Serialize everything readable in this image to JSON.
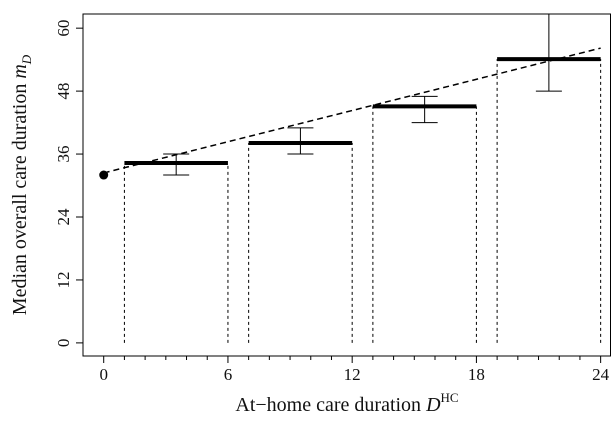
{
  "chart_data": {
    "type": "step-median",
    "xlabel": {
      "text": "At−home care duration",
      "symbol": "D",
      "superscript": "HC"
    },
    "ylabel": {
      "text": "Median overall care duration",
      "symbol": "m",
      "subscript": "D"
    },
    "xlim": [
      -1,
      24.5
    ],
    "ylim": [
      -2.5,
      62.7
    ],
    "xticks": [
      0,
      6,
      12,
      18,
      24
    ],
    "xminor_ticks": [
      1,
      2,
      3,
      4,
      5,
      7,
      8,
      9,
      10,
      11,
      13,
      14,
      15,
      16,
      17,
      19,
      20,
      21,
      22,
      23
    ],
    "yticks": [
      0,
      12,
      24,
      36,
      48,
      60
    ],
    "segments": [
      {
        "start": 1,
        "end": 6,
        "value": 34.3
      },
      {
        "start": 7,
        "end": 12,
        "value": 38.1
      },
      {
        "start": 13,
        "end": 18,
        "value": 45.1
      },
      {
        "start": 19,
        "end": 24,
        "value": 54.1
      }
    ],
    "error_bars": [
      {
        "x": 3.5,
        "low": 32,
        "high": 36
      },
      {
        "x": 9.5,
        "low": 36,
        "high": 41
      },
      {
        "x": 15.5,
        "low": 42,
        "high": 47
      },
      {
        "x": 21.5,
        "low": 48,
        "high": 64
      }
    ],
    "trend": {
      "x": [
        0,
        24
      ],
      "y": [
        32.4,
        56.2
      ]
    },
    "point": {
      "x": 0,
      "y": 32
    },
    "color": "#000000"
  }
}
